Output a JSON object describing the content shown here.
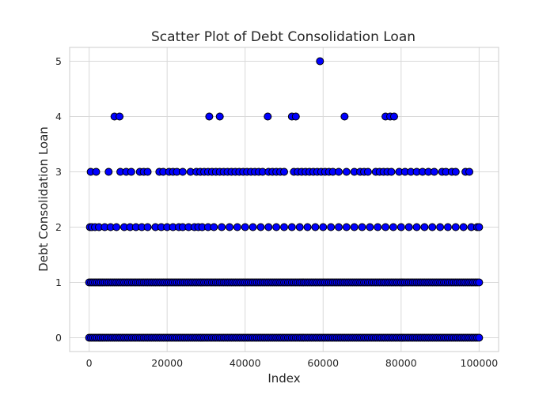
{
  "chart_data": {
    "type": "scatter",
    "title": "Scatter Plot of Debt Consolidation Loan",
    "xlabel": "Index",
    "ylabel": "Debt Consolidation Loan",
    "xlim": [
      -5000,
      105000
    ],
    "ylim": [
      -0.25,
      5.25
    ],
    "x_ticks": [
      0,
      20000,
      40000,
      60000,
      80000,
      100000
    ],
    "x_tick_labels": [
      "0",
      "20000",
      "40000",
      "60000",
      "80000",
      "100000"
    ],
    "y_ticks": [
      0,
      1,
      2,
      3,
      4,
      5
    ],
    "y_tick_labels": [
      "0",
      "1",
      "2",
      "3",
      "4",
      "5"
    ],
    "grid": true,
    "marker_color": "#0000ff",
    "marker_edge_color": "#000000",
    "series": [
      {
        "points_y0": {
          "y": 0,
          "x_range": [
            0,
            100000
          ]
        },
        "points_y1": {
          "y": 1,
          "x_range": [
            0,
            100000
          ]
        },
        "points_y2": {
          "y": 2,
          "x": [
            200,
            700,
            1500,
            2500,
            4000,
            5500,
            7000,
            9000,
            10500,
            12000,
            13500,
            15000,
            17000,
            18500,
            20000,
            21500,
            23000,
            24000,
            25500,
            27000,
            28000,
            29000,
            30500,
            32000,
            34000,
            36000,
            38000,
            40000,
            42000,
            44000,
            46000,
            48000,
            50000,
            52000,
            54000,
            56000,
            58000,
            60000,
            62000,
            64000,
            66000,
            68000,
            70000,
            72000,
            74000,
            76000,
            78000,
            80000,
            82000,
            84000,
            86000,
            88000,
            90000,
            92000,
            94000,
            96000,
            98000,
            99500,
            100000
          ]
        },
        "points_y3": {
          "y": 3,
          "x": [
            400,
            1800,
            5000,
            8000,
            9500,
            10800,
            13000,
            14000,
            15000,
            18000,
            19000,
            20500,
            21500,
            22500,
            24000,
            26000,
            27500,
            28500,
            29500,
            30500,
            31500,
            32500,
            33500,
            34500,
            35500,
            36500,
            37500,
            38500,
            39500,
            40500,
            41500,
            42500,
            43500,
            44500,
            46000,
            47000,
            48000,
            49000,
            50000,
            52500,
            53500,
            54500,
            55500,
            56500,
            57500,
            58500,
            59500,
            60500,
            61500,
            62500,
            64000,
            66000,
            68000,
            69500,
            70500,
            71500,
            73500,
            74500,
            75500,
            76500,
            77500,
            79500,
            81000,
            82500,
            84000,
            85500,
            87000,
            88500,
            90500,
            91500,
            93000,
            94000,
            96500,
            97500
          ]
        },
        "points_y4": {
          "y": 4,
          "x": [
            6500,
            7800,
            30800,
            33500,
            45800,
            52000,
            53000,
            65500,
            76000,
            77200,
            78200
          ]
        },
        "points_y5": {
          "y": 5,
          "x": [
            59200
          ]
        }
      }
    ]
  }
}
